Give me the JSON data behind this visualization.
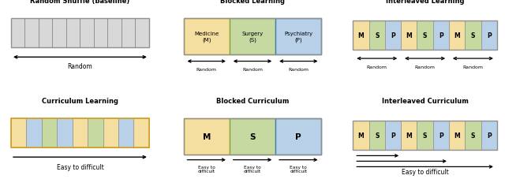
{
  "colors": {
    "M": "#F5DFA0",
    "S": "#C5D9A0",
    "P": "#B8D0E8",
    "gray": "#D8D8D8",
    "border_M": "#D4A020",
    "border_S": "#80A840",
    "border_P": "#4080B0",
    "border_gray": "#909090"
  },
  "titles": {
    "random_shuffle": "Random Shuffle (baseline)",
    "blocked_learning": "Blocked Learning",
    "interleaved_learning": "Interleaved Learning",
    "curriculum_learning": "Curriculum Learning",
    "blocked_curriculum": "Blocked Curriculum",
    "interleaved_curriculum": "Interleaved Curriculum"
  },
  "background": "#FFFFFF"
}
